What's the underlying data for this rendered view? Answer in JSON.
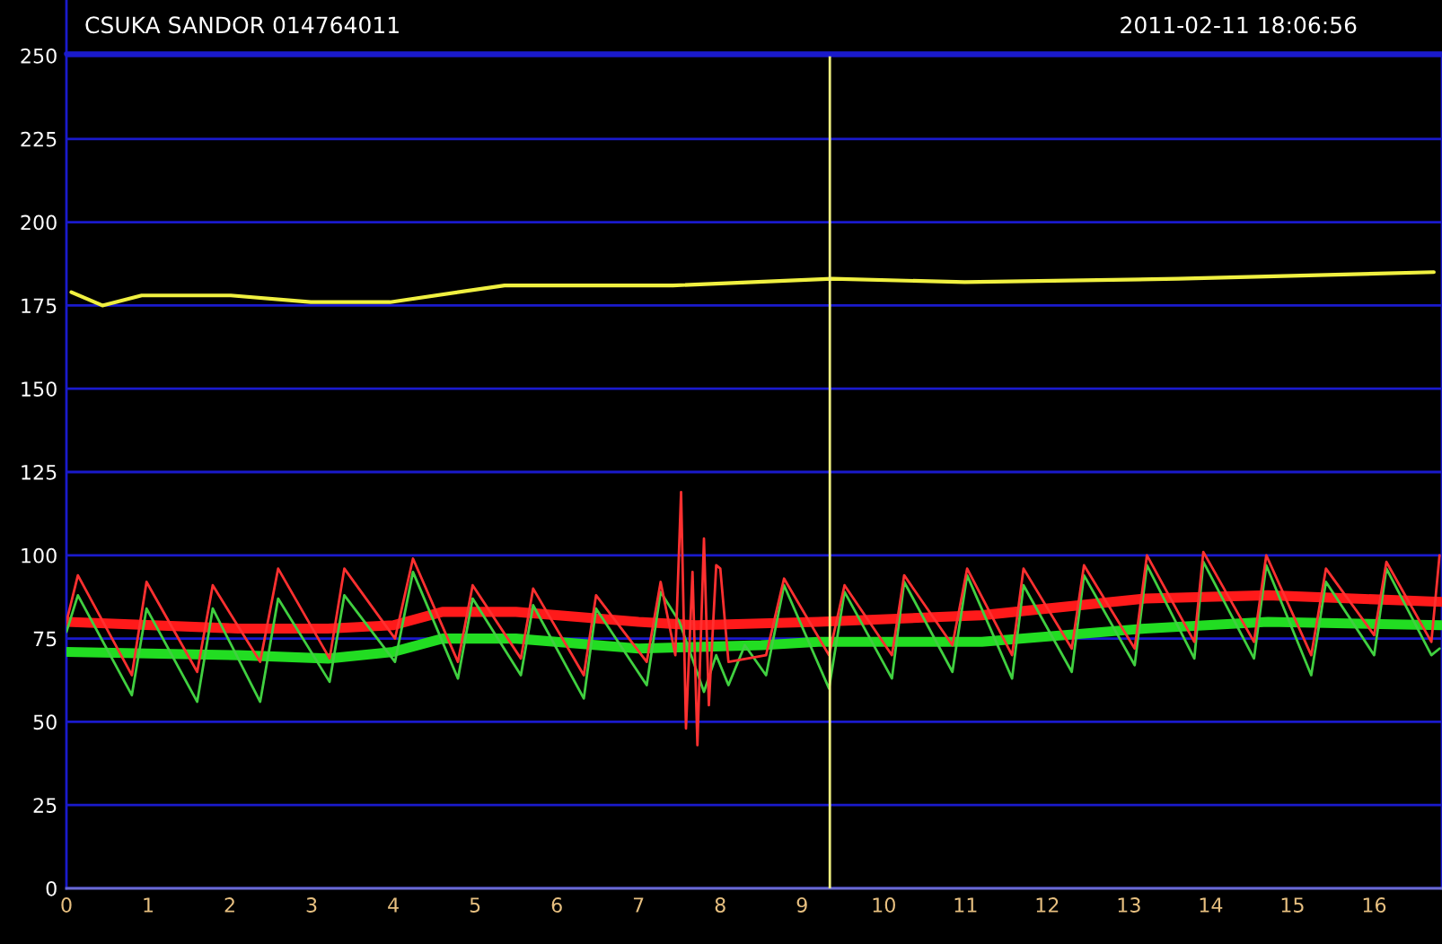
{
  "chart_data": {
    "type": "line",
    "title": "CSUKA SANDOR 014764011",
    "subtitle": "2011-02-11 18:06:56",
    "xlim": [
      0,
      16.83
    ],
    "xticks": [
      0,
      1,
      2,
      3,
      4,
      5,
      6,
      7,
      8,
      9,
      10,
      11,
      12,
      13,
      14,
      15,
      16
    ],
    "ylim": [
      0,
      250
    ],
    "yticks": [
      0,
      25,
      50,
      75,
      100,
      125,
      150,
      175,
      200,
      225,
      250
    ],
    "grid": "y",
    "legend": false,
    "marker": "none",
    "line_style": "solid",
    "ref_lines": [
      {
        "axis": "x",
        "value": 9.34,
        "color": "#f0f080"
      }
    ],
    "series": [
      {
        "color": "#f0f040",
        "x": [
          0.06,
          0.44,
          0.92,
          1.47,
          2.01,
          2.99,
          3.96,
          5.36,
          7.42,
          9.37,
          10.99,
          13.6,
          16.73
        ],
        "values": [
          179,
          175,
          178,
          178,
          178,
          176,
          176,
          181,
          181,
          183,
          182,
          183,
          185
        ]
      },
      {
        "color": "#40d040",
        "x": [
          0.0,
          0.14,
          0.8,
          0.98,
          1.6,
          1.79,
          2.37,
          2.59,
          3.22,
          3.4,
          4.02,
          4.24,
          4.79,
          4.97,
          5.56,
          5.71,
          6.33,
          6.48,
          7.1,
          7.27,
          7.5,
          7.8,
          7.95,
          8.1,
          8.3,
          8.56,
          8.78,
          9.33,
          9.52,
          10.1,
          10.25,
          10.84,
          11.02,
          11.57,
          11.71,
          12.3,
          12.45,
          13.07,
          13.22,
          13.8,
          13.91,
          14.53,
          14.68,
          15.23,
          15.41,
          16.0,
          16.15,
          16.7,
          16.8
        ],
        "values": [
          77,
          88,
          58,
          84,
          56,
          84,
          56,
          87,
          62,
          88,
          68,
          95,
          63,
          87,
          64,
          85,
          57,
          84,
          61,
          89,
          80,
          59,
          70,
          61,
          73,
          64,
          91,
          60,
          89,
          63,
          92,
          65,
          94,
          63,
          91,
          65,
          94,
          67,
          97,
          69,
          98,
          69,
          97,
          64,
          92,
          70,
          96,
          70,
          72
        ]
      },
      {
        "color": "#ff3030",
        "x": [
          0.0,
          0.14,
          0.8,
          0.98,
          1.6,
          1.79,
          2.37,
          2.59,
          3.22,
          3.4,
          4.02,
          4.24,
          4.79,
          4.97,
          5.56,
          5.71,
          6.33,
          6.48,
          7.1,
          7.27,
          7.45,
          7.52,
          7.58,
          7.66,
          7.72,
          7.8,
          7.86,
          7.95,
          8.0,
          8.1,
          8.56,
          8.78,
          9.33,
          9.52,
          10.1,
          10.25,
          10.84,
          11.02,
          11.57,
          11.71,
          12.3,
          12.45,
          13.07,
          13.22,
          13.8,
          13.91,
          14.53,
          14.68,
          15.23,
          15.41,
          16.0,
          16.15,
          16.7,
          16.8
        ],
        "values": [
          80,
          94,
          64,
          92,
          65,
          91,
          68,
          96,
          69,
          96,
          75,
          99,
          68,
          91,
          69,
          90,
          64,
          88,
          68,
          92,
          70,
          119,
          48,
          95,
          43,
          105,
          55,
          97,
          96,
          68,
          70,
          93,
          70,
          91,
          70,
          94,
          73,
          96,
          70,
          96,
          72,
          97,
          72,
          100,
          74,
          101,
          74,
          100,
          70,
          96,
          76,
          98,
          74,
          100
        ]
      },
      {
        "color": "#ff1a1a",
        "x": [
          0,
          2.1,
          3.2,
          4.0,
          4.6,
          5.5,
          7.0,
          7.7,
          9.2,
          11.2,
          13.2,
          14.7,
          16.83
        ],
        "values": [
          80,
          78,
          78,
          79,
          83,
          83,
          80,
          79,
          80,
          82,
          87,
          88,
          86
        ]
      },
      {
        "color": "#22dd22",
        "x": [
          0,
          2.1,
          3.2,
          4.0,
          4.6,
          5.5,
          7.0,
          8.5,
          9.2,
          11.2,
          13.2,
          14.7,
          16.83
        ],
        "values": [
          71,
          70,
          69,
          71,
          75,
          75,
          72,
          73,
          74,
          74,
          78,
          80,
          79
        ]
      }
    ]
  }
}
